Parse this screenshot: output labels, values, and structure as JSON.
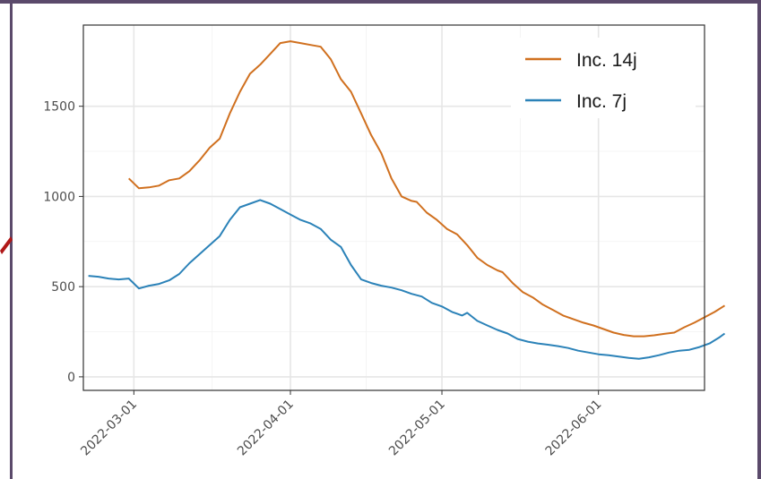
{
  "chart_data": {
    "type": "line",
    "title": "",
    "xlabel": "",
    "ylabel": "",
    "xlim": [
      "2022-02-19",
      "2022-06-22"
    ],
    "ylim": [
      -75,
      1950
    ],
    "y_ticks": [
      0,
      500,
      1000,
      1500
    ],
    "y_tick_labels": [
      "0",
      "500",
      "1000",
      "1500"
    ],
    "x_ticks": [
      "2022-03-01",
      "2022-04-01",
      "2022-05-01",
      "2022-06-01"
    ],
    "x_tick_labels": [
      "2022-03-01",
      "2022-04-01",
      "2022-05-01",
      "2022-06-01"
    ],
    "grid": true,
    "legend_position": "top-right",
    "series": [
      {
        "name": "Inc. 14j",
        "color": "#d0701f",
        "points": [
          [
            "2022-02-28",
            1100
          ],
          [
            "2022-03-02",
            1045
          ],
          [
            "2022-03-04",
            1050
          ],
          [
            "2022-03-06",
            1060
          ],
          [
            "2022-03-08",
            1090
          ],
          [
            "2022-03-10",
            1100
          ],
          [
            "2022-03-12",
            1140
          ],
          [
            "2022-03-14",
            1200
          ],
          [
            "2022-03-16",
            1270
          ],
          [
            "2022-03-18",
            1320
          ],
          [
            "2022-03-20",
            1460
          ],
          [
            "2022-03-22",
            1580
          ],
          [
            "2022-03-24",
            1680
          ],
          [
            "2022-03-26",
            1730
          ],
          [
            "2022-03-28",
            1790
          ],
          [
            "2022-03-30",
            1850
          ],
          [
            "2022-04-01",
            1860
          ],
          [
            "2022-04-03",
            1850
          ],
          [
            "2022-04-05",
            1840
          ],
          [
            "2022-04-07",
            1830
          ],
          [
            "2022-04-09",
            1760
          ],
          [
            "2022-04-11",
            1650
          ],
          [
            "2022-04-13",
            1580
          ],
          [
            "2022-04-15",
            1460
          ],
          [
            "2022-04-17",
            1340
          ],
          [
            "2022-04-19",
            1240
          ],
          [
            "2022-04-21",
            1100
          ],
          [
            "2022-04-23",
            1000
          ],
          [
            "2022-04-25",
            975
          ],
          [
            "2022-04-26",
            970
          ],
          [
            "2022-04-28",
            910
          ],
          [
            "2022-04-30",
            870
          ],
          [
            "2022-05-02",
            820
          ],
          [
            "2022-05-04",
            790
          ],
          [
            "2022-05-06",
            730
          ],
          [
            "2022-05-08",
            660
          ],
          [
            "2022-05-10",
            620
          ],
          [
            "2022-05-12",
            590
          ],
          [
            "2022-05-13",
            580
          ],
          [
            "2022-05-15",
            520
          ],
          [
            "2022-05-17",
            470
          ],
          [
            "2022-05-19",
            440
          ],
          [
            "2022-05-21",
            400
          ],
          [
            "2022-05-23",
            370
          ],
          [
            "2022-05-25",
            340
          ],
          [
            "2022-05-27",
            320
          ],
          [
            "2022-05-29",
            300
          ],
          [
            "2022-05-31",
            285
          ],
          [
            "2022-06-02",
            265
          ],
          [
            "2022-06-04",
            245
          ],
          [
            "2022-06-06",
            232
          ],
          [
            "2022-06-08",
            225
          ],
          [
            "2022-06-10",
            225
          ],
          [
            "2022-06-12",
            230
          ],
          [
            "2022-06-14",
            238
          ],
          [
            "2022-06-16",
            245
          ],
          [
            "2022-06-18",
            275
          ],
          [
            "2022-06-20",
            300
          ],
          [
            "2022-06-22",
            330
          ],
          [
            "2022-06-24",
            360
          ],
          [
            "2022-06-26",
            395
          ]
        ]
      },
      {
        "name": "Inc. 7j",
        "color": "#2b82b8",
        "points": [
          [
            "2022-02-20",
            560
          ],
          [
            "2022-02-22",
            555
          ],
          [
            "2022-02-24",
            545
          ],
          [
            "2022-02-26",
            540
          ],
          [
            "2022-02-28",
            545
          ],
          [
            "2022-03-02",
            490
          ],
          [
            "2022-03-04",
            505
          ],
          [
            "2022-03-06",
            515
          ],
          [
            "2022-03-08",
            535
          ],
          [
            "2022-03-10",
            570
          ],
          [
            "2022-03-12",
            630
          ],
          [
            "2022-03-14",
            680
          ],
          [
            "2022-03-16",
            730
          ],
          [
            "2022-03-18",
            780
          ],
          [
            "2022-03-20",
            870
          ],
          [
            "2022-03-22",
            940
          ],
          [
            "2022-03-24",
            960
          ],
          [
            "2022-03-26",
            980
          ],
          [
            "2022-03-28",
            960
          ],
          [
            "2022-03-30",
            930
          ],
          [
            "2022-04-01",
            900
          ],
          [
            "2022-04-03",
            870
          ],
          [
            "2022-04-05",
            850
          ],
          [
            "2022-04-07",
            820
          ],
          [
            "2022-04-09",
            760
          ],
          [
            "2022-04-11",
            720
          ],
          [
            "2022-04-13",
            620
          ],
          [
            "2022-04-15",
            540
          ],
          [
            "2022-04-17",
            520
          ],
          [
            "2022-04-19",
            505
          ],
          [
            "2022-04-21",
            495
          ],
          [
            "2022-04-23",
            480
          ],
          [
            "2022-04-25",
            460
          ],
          [
            "2022-04-27",
            445
          ],
          [
            "2022-04-29",
            410
          ],
          [
            "2022-05-01",
            390
          ],
          [
            "2022-05-03",
            360
          ],
          [
            "2022-05-05",
            340
          ],
          [
            "2022-05-06",
            355
          ],
          [
            "2022-05-08",
            310
          ],
          [
            "2022-05-10",
            285
          ],
          [
            "2022-05-12",
            260
          ],
          [
            "2022-05-14",
            240
          ],
          [
            "2022-05-16",
            210
          ],
          [
            "2022-05-18",
            195
          ],
          [
            "2022-05-20",
            185
          ],
          [
            "2022-05-22",
            178
          ],
          [
            "2022-05-24",
            170
          ],
          [
            "2022-05-26",
            160
          ],
          [
            "2022-05-28",
            145
          ],
          [
            "2022-05-30",
            135
          ],
          [
            "2022-06-01",
            125
          ],
          [
            "2022-06-03",
            120
          ],
          [
            "2022-06-05",
            112
          ],
          [
            "2022-06-07",
            105
          ],
          [
            "2022-06-09",
            100
          ],
          [
            "2022-06-11",
            108
          ],
          [
            "2022-06-13",
            120
          ],
          [
            "2022-06-15",
            135
          ],
          [
            "2022-06-17",
            145
          ],
          [
            "2022-06-19",
            150
          ],
          [
            "2022-06-21",
            165
          ],
          [
            "2022-06-23",
            185
          ],
          [
            "2022-06-25",
            220
          ],
          [
            "2022-06-26",
            240
          ]
        ]
      }
    ]
  }
}
